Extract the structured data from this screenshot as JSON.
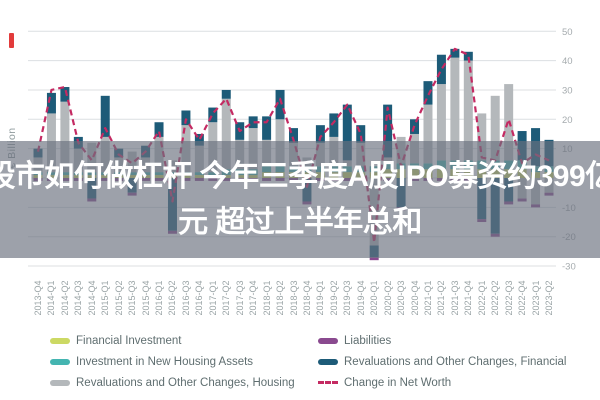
{
  "page": {
    "corner_mark_color": "#e23b3b"
  },
  "overlay": {
    "headline_line1": "股市如何做杠杆 今年三季度A股IPO募资约399亿",
    "headline_line2": "元 超过上半年总和"
  },
  "chart_data": {
    "type": "bar",
    "subtype": "stacked-bars-with-line",
    "title": "",
    "xlabel": "",
    "ylabel": "€ Billion",
    "ylim": [
      -30,
      50
    ],
    "grid": true,
    "gridline_step": 10,
    "y_ticks_labeled": [
      50,
      40,
      30,
      20,
      10,
      -10,
      -20,
      -30
    ],
    "legend_position": "bottom",
    "categories": [
      "2013-Q4",
      "2014-Q1",
      "2014-Q2",
      "2014-Q3",
      "2014-Q4",
      "2015-Q1",
      "2015-Q2",
      "2015-Q3",
      "2015-Q4",
      "2016-Q1",
      "2016-Q2",
      "2016-Q3",
      "2016-Q4",
      "2017-Q1",
      "2017-Q2",
      "2017-Q3",
      "2017-Q4",
      "2018-Q1",
      "2018-Q2",
      "2018-Q3",
      "2018-Q4",
      "2019-Q1",
      "2019-Q2",
      "2019-Q3",
      "2019-Q4",
      "2020-Q1",
      "2020-Q2",
      "2020-Q3",
      "2020-Q4",
      "2021-Q1",
      "2021-Q2",
      "2021-Q3",
      "2021-Q4",
      "2022-Q1",
      "2022-Q2",
      "2022-Q3",
      "2022-Q4",
      "2023-Q1",
      "2023-Q2"
    ],
    "series": [
      {
        "name": "Financial Investment",
        "color": "#ccd964",
        "values": [
          1,
          1,
          1,
          1,
          1,
          1,
          1,
          1,
          1,
          1,
          1,
          1,
          1,
          1,
          1,
          1,
          1,
          2,
          2,
          2,
          2,
          2,
          2,
          2,
          2,
          2,
          3,
          3,
          3,
          3,
          3,
          3,
          3,
          3,
          3,
          3,
          3,
          2,
          2
        ]
      },
      {
        "name": "Investment in New Housing Assets",
        "color": "#44b5b1",
        "values": [
          1,
          1,
          1,
          1,
          1,
          1,
          1,
          1,
          1,
          1,
          1,
          1,
          1,
          1,
          2,
          2,
          2,
          2,
          2,
          2,
          2,
          2,
          2,
          2,
          2,
          2,
          2,
          2,
          2,
          2,
          3,
          3,
          3,
          3,
          3,
          3,
          3,
          2,
          2
        ]
      },
      {
        "name": "Revaluations and Other Changes, Housing",
        "color": "#b4b8bb",
        "values": [
          5,
          20,
          24,
          8,
          10,
          12,
          5,
          7,
          5,
          12,
          4,
          16,
          9,
          17,
          24,
          10,
          14,
          9,
          16,
          8,
          3,
          8,
          10,
          2,
          8,
          -23,
          2,
          9,
          10,
          20,
          26,
          35,
          34,
          16,
          22,
          26,
          -7,
          -9,
          -5
        ]
      },
      {
        "name": "Revaluations and Other Changes, Financial",
        "color": "#1d5b78",
        "values": [
          3,
          7,
          5,
          4,
          -7,
          14,
          3,
          -5,
          4,
          5,
          -18,
          5,
          4,
          5,
          3,
          6,
          4,
          8,
          10,
          5,
          -8,
          6,
          8,
          19,
          6,
          -4,
          18,
          -10,
          5,
          8,
          10,
          3,
          3,
          -14,
          -19,
          -8,
          10,
          13,
          9
        ]
      },
      {
        "name": "Liabilities",
        "color": "#8a4a8f",
        "values": [
          -1,
          -1,
          -1,
          -1,
          -1,
          -1,
          -1,
          -1,
          -1,
          -1,
          -1,
          -1,
          -1,
          -1,
          -1,
          -1,
          -1,
          -1,
          -1,
          -1,
          -1,
          -1,
          -1,
          -1,
          -1,
          -1,
          -1,
          -1,
          -1,
          -1,
          -1,
          -1,
          -1,
          -1,
          -1,
          -1,
          -1,
          -1,
          -1
        ]
      }
    ],
    "line_series": {
      "name": "Change in Net Worth",
      "color": "#c42a62",
      "style": "dashed",
      "values": [
        9,
        30,
        31,
        12,
        6,
        17,
        8,
        5,
        9,
        16,
        -8,
        20,
        13,
        22,
        27,
        16,
        19,
        19,
        27,
        13,
        -3,
        14,
        19,
        25,
        15,
        -22,
        24,
        4,
        18,
        28,
        37,
        44,
        42,
        7,
        6,
        20,
        5,
        8,
        6
      ]
    }
  },
  "legend": {
    "items": [
      {
        "label": "Financial Investment",
        "color": "#ccd964",
        "kind": "box"
      },
      {
        "label": "Liabilities",
        "color": "#8a4a8f",
        "kind": "box"
      },
      {
        "label": "Investment in New Housing Assets",
        "color": "#44b5b1",
        "kind": "box"
      },
      {
        "label": "Revaluations and Other Changes, Financial",
        "color": "#1d5b78",
        "kind": "box"
      },
      {
        "label": "Revaluations and Other Changes, Housing",
        "color": "#b4b8bb",
        "kind": "box"
      },
      {
        "label": "Change in Net Worth",
        "color": "#c42a62",
        "kind": "dashed-line"
      }
    ]
  }
}
